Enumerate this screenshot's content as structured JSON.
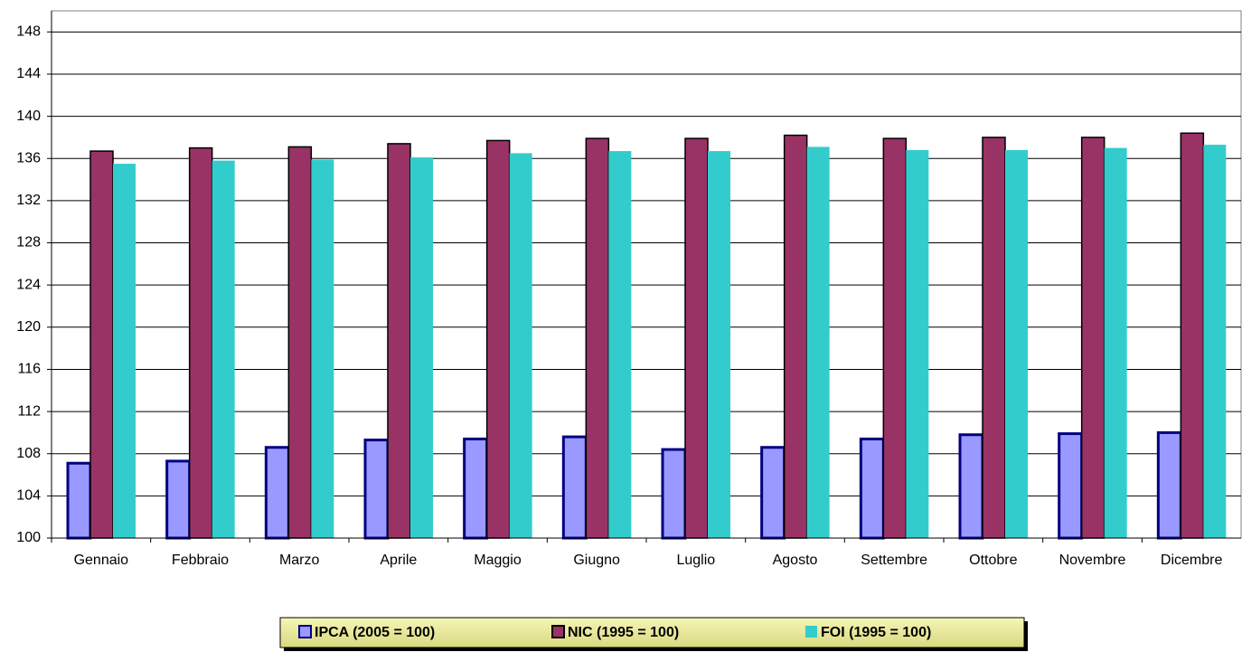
{
  "chart_data": {
    "type": "bar",
    "categories": [
      "Gennaio",
      "Febbraio",
      "Marzo",
      "Aprile",
      "Maggio",
      "Giugno",
      "Luglio",
      "Agosto",
      "Settembre",
      "Ottobre",
      "Novembre",
      "Dicembre"
    ],
    "series": [
      {
        "name": "IPCA (2005 = 100)",
        "color": "#9999ff",
        "values": [
          107.1,
          107.3,
          108.6,
          109.3,
          109.4,
          109.6,
          108.4,
          108.6,
          109.4,
          109.8,
          109.9,
          110.0
        ]
      },
      {
        "name": "NIC (1995 = 100)",
        "color": "#993366",
        "values": [
          136.7,
          137.0,
          137.1,
          137.4,
          137.7,
          137.9,
          137.9,
          138.2,
          137.9,
          138.0,
          138.0,
          138.4
        ]
      },
      {
        "name": "FOI (1995 = 100)",
        "color": "#33cccc",
        "values": [
          135.5,
          135.8,
          135.9,
          136.1,
          136.5,
          136.7,
          136.7,
          137.1,
          136.8,
          136.8,
          137.0,
          137.3
        ]
      }
    ],
    "ylim": [
      100,
      150
    ],
    "yticks": [
      100,
      104,
      108,
      112,
      116,
      120,
      124,
      128,
      132,
      136,
      140,
      144,
      148
    ],
    "grid": true
  }
}
